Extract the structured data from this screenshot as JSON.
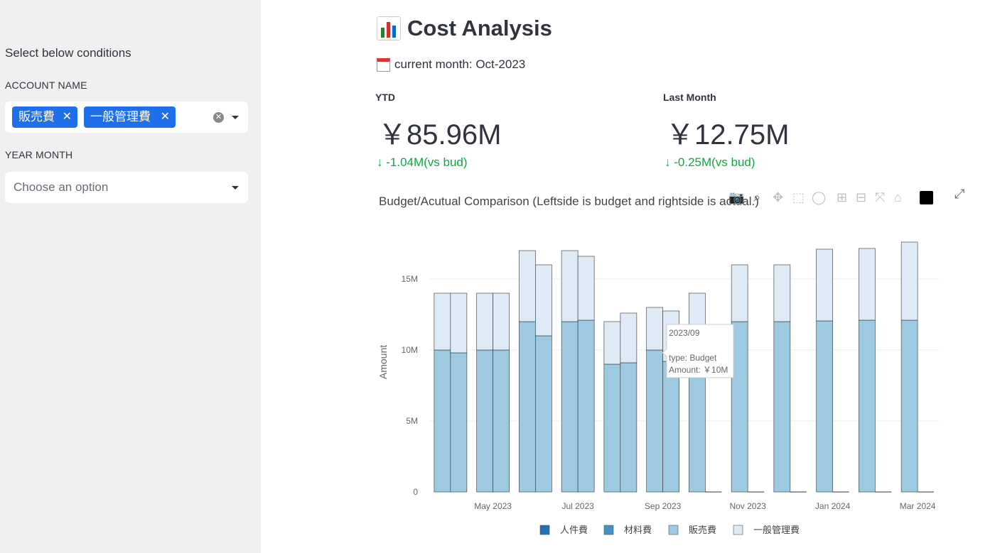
{
  "sidebar": {
    "heading": "Select below conditions",
    "account_label": "ACCOUNT NAME",
    "account_tags": [
      "販売費",
      "一般管理費"
    ],
    "year_month_label": "YEAR MONTH",
    "year_month_placeholder": "Choose an option"
  },
  "main": {
    "title": "Cost Analysis",
    "current_month": "current month: Oct-2023",
    "metrics": [
      {
        "label": "YTD",
        "value": "￥85.96M",
        "delta": "-1.04M(vs bud)"
      },
      {
        "label": "Last Month",
        "value": "￥12.75M",
        "delta": "-0.25M(vs bud)"
      }
    ],
    "chart_title": "Budget/Acutual Comparison (Leftside is budget and rightside is actual.)"
  },
  "modebar_icons": [
    "camera-icon",
    "zoom-icon",
    "pan-icon",
    "box-select-icon",
    "lasso-icon",
    "zoom-in-icon",
    "zoom-out-icon",
    "autoscale-icon",
    "reset-icon",
    "plotly-logo-icon"
  ],
  "chart_data": {
    "type": "bar",
    "barmode": "stack",
    "categories": [
      "2023/04",
      "2023/05",
      "2023/06",
      "2023/07",
      "2023/08",
      "2023/09",
      "2023/10",
      "2023/11",
      "2023/12",
      "2024/01",
      "2024/02",
      "2024/03"
    ],
    "x_tick_labels": [
      "May 2023",
      "Jul 2023",
      "Sep 2023",
      "Nov 2023",
      "Jan 2024",
      "Mar 2024"
    ],
    "ylabel": "Amount",
    "y_ticks": [
      "0",
      "5M",
      "10M",
      "15M"
    ],
    "ylim": [
      0,
      17.5
    ],
    "legend": [
      "人件費",
      "材料費",
      "販売費",
      "一般管理費"
    ],
    "legend_colors": [
      "#2171b5",
      "#4292c6",
      "#9ecae1",
      "#deebf7"
    ],
    "series": [
      {
        "name": "販売費",
        "color": "#9ecae1",
        "budget": [
          10,
          10,
          12,
          12,
          9,
          10,
          10,
          12,
          12,
          12.05,
          12.1,
          12.1
        ],
        "actual": [
          9.8,
          10,
          11,
          12.1,
          9.1,
          9.2,
          0,
          0,
          0,
          0,
          0,
          0
        ]
      },
      {
        "name": "一般管理費",
        "color": "#deebf7",
        "budget": [
          4,
          4,
          5,
          5,
          3,
          3,
          4,
          4,
          4,
          5.05,
          5.05,
          5.5
        ],
        "actual": [
          4.2,
          4,
          5,
          4.5,
          3.5,
          3.55,
          0,
          0,
          0,
          0,
          0,
          0
        ]
      }
    ],
    "hover": {
      "title": "2023/09",
      "type": "type: Budget",
      "amount": "Amount: ￥10M"
    }
  }
}
